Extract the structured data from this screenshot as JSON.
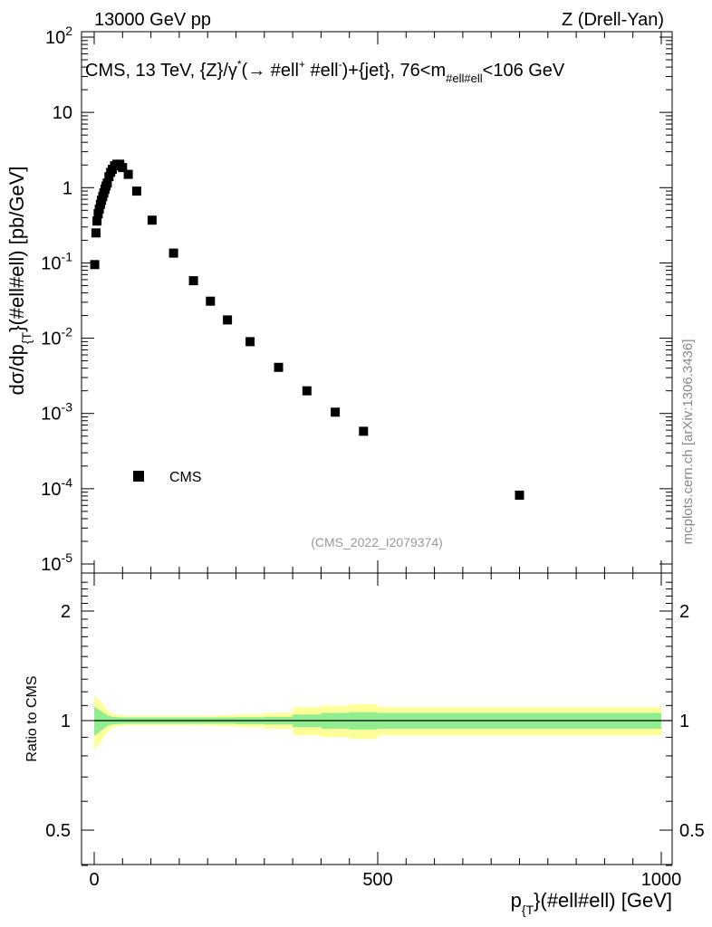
{
  "header": {
    "left": "13000 GeV pp",
    "right": "Z (Drell-Yan)"
  },
  "side_label": "mcplots.cern.ch [arXiv:1306.3436]",
  "analysis_id": "(CMS_2022_I2079374)",
  "chart_data": [
    {
      "type": "scatter",
      "panel": "main",
      "title": "CMS, 13 TeV, {Z}/γ* (→ #ell+ #ell-)+{jet}, 76<m_#ell#ell<106 GeV",
      "title_parts": {
        "prefix": "CMS, 13 TeV, {Z}/γ",
        "star": "*",
        "arrow": "(→  #ell",
        "plus": "+",
        "mid": " #ell",
        "minus": "-",
        "suffix": ")+{jet}, 76<m",
        "sub": "#ell#ell",
        "end": "<106 GeV"
      },
      "ylabel_parts": {
        "pre": "dσ/dp",
        "sub": "{T",
        "post": "}(#ell#ell) [pb/GeV]"
      },
      "yscale": "log",
      "ylim": [
        1e-05,
        100
      ],
      "xlim": [
        0,
        1000
      ],
      "yticks": [
        {
          "value": 100,
          "base": "10",
          "exp": "2"
        },
        {
          "value": 10,
          "base": "10",
          "exp": ""
        },
        {
          "value": 1,
          "base": "1",
          "exp": ""
        },
        {
          "value": 0.1,
          "base": "10",
          "exp": "-1"
        },
        {
          "value": 0.01,
          "base": "10",
          "exp": "-2"
        },
        {
          "value": 0.001,
          "base": "10",
          "exp": "-3"
        },
        {
          "value": 0.0001,
          "base": "10",
          "exp": "-4"
        },
        {
          "value": 1e-05,
          "base": "10",
          "exp": "-5"
        }
      ],
      "legend": {
        "label": "CMS",
        "location": "lower-left"
      },
      "series": [
        {
          "name": "CMS",
          "x": [
            1,
            3,
            5,
            7,
            9,
            11,
            13,
            15,
            17,
            19,
            21,
            23,
            26,
            29,
            32,
            36,
            40,
            45,
            50,
            60,
            75,
            102,
            140,
            175,
            205,
            235,
            275,
            325,
            375,
            425,
            475,
            750
          ],
          "y": [
            0.095,
            0.25,
            0.36,
            0.45,
            0.52,
            0.6,
            0.68,
            0.76,
            0.85,
            0.95,
            1.05,
            1.15,
            1.4,
            1.6,
            1.75,
            1.95,
            2.05,
            2.05,
            1.85,
            1.5,
            0.9,
            0.37,
            0.135,
            0.058,
            0.031,
            0.0175,
            0.009,
            0.0041,
            0.002,
            0.00104,
            0.00058,
            8.2e-05
          ]
        }
      ]
    },
    {
      "type": "area",
      "panel": "ratio",
      "ylabel": "Ratio to CMS",
      "xlabel_parts": {
        "pre": "p",
        "sub": "{T",
        "post": "}(#ell#ell) [GeV]"
      },
      "xlim": [
        0,
        1000
      ],
      "ylim": [
        0.4,
        2.4
      ],
      "yscale": "log",
      "xticks": [
        0,
        500,
        1000
      ],
      "yticks": [
        0.5,
        1,
        2
      ],
      "bin_edges": [
        0,
        2,
        4,
        6,
        8,
        10,
        12,
        14,
        16,
        18,
        20,
        22,
        24,
        28,
        30,
        34,
        38,
        42,
        48,
        55,
        65,
        85,
        120,
        160,
        190,
        220,
        250,
        300,
        350,
        400,
        450,
        500,
        1000
      ],
      "band_inner": [
        0.09,
        0.085,
        0.08,
        0.075,
        0.07,
        0.065,
        0.06,
        0.055,
        0.05,
        0.045,
        0.04,
        0.035,
        0.03,
        0.027,
        0.025,
        0.023,
        0.022,
        0.021,
        0.02,
        0.02,
        0.02,
        0.02,
        0.02,
        0.02,
        0.02,
        0.02,
        0.022,
        0.025,
        0.04,
        0.05,
        0.055,
        0.05
      ],
      "band_outer": [
        0.17,
        0.16,
        0.15,
        0.145,
        0.14,
        0.13,
        0.12,
        0.11,
        0.1,
        0.09,
        0.08,
        0.07,
        0.06,
        0.05,
        0.045,
        0.04,
        0.038,
        0.035,
        0.032,
        0.03,
        0.03,
        0.03,
        0.03,
        0.03,
        0.032,
        0.035,
        0.04,
        0.05,
        0.09,
        0.1,
        0.11,
        0.09
      ],
      "reference": 1,
      "colors": {
        "inner": "#90ee90",
        "outer": "#ffff99",
        "line": "#000000"
      }
    }
  ]
}
